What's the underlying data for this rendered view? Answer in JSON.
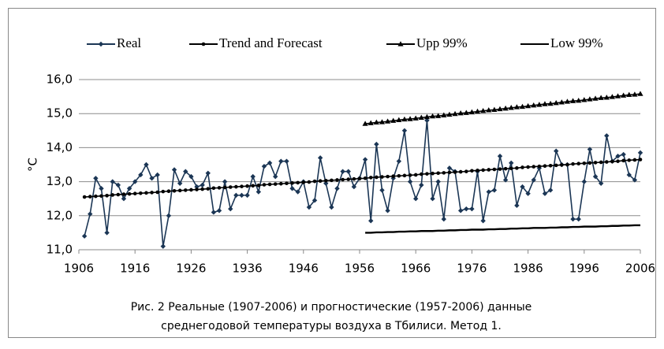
{
  "chart_data": {
    "type": "line",
    "y_label": "°C",
    "caption": [
      "Рис. 2  Реальные (1907-2006) и прогностические  (1957-2006) данные",
      "среднегодовой температуры воздуха в Тбилиси.  Метод 1."
    ],
    "x": [
      1907,
      1908,
      1909,
      1910,
      1911,
      1912,
      1913,
      1914,
      1915,
      1916,
      1917,
      1918,
      1919,
      1920,
      1921,
      1922,
      1923,
      1924,
      1925,
      1926,
      1927,
      1928,
      1929,
      1930,
      1931,
      1932,
      1933,
      1934,
      1935,
      1936,
      1937,
      1938,
      1939,
      1940,
      1941,
      1942,
      1943,
      1944,
      1945,
      1946,
      1947,
      1948,
      1949,
      1950,
      1951,
      1952,
      1953,
      1954,
      1955,
      1956,
      1957,
      1958,
      1959,
      1960,
      1961,
      1962,
      1963,
      1964,
      1965,
      1966,
      1967,
      1968,
      1969,
      1970,
      1971,
      1972,
      1973,
      1974,
      1975,
      1976,
      1977,
      1978,
      1979,
      1980,
      1981,
      1982,
      1983,
      1984,
      1985,
      1986,
      1987,
      1988,
      1989,
      1990,
      1991,
      1992,
      1993,
      1994,
      1995,
      1996,
      1997,
      1998,
      1999,
      2000,
      2001,
      2002,
      2003,
      2004,
      2005,
      2006
    ],
    "series": [
      {
        "name": "Real",
        "color": "#1b3655",
        "marker": "diamond",
        "values": [
          11.4,
          12.05,
          13.1,
          12.8,
          11.5,
          13.0,
          12.9,
          12.5,
          12.8,
          13.0,
          13.2,
          13.5,
          13.1,
          13.2,
          11.1,
          12.0,
          13.35,
          12.95,
          13.3,
          13.15,
          12.85,
          12.9,
          13.25,
          12.1,
          12.15,
          13.0,
          12.2,
          12.6,
          12.6,
          12.6,
          13.15,
          12.7,
          13.45,
          13.55,
          13.15,
          13.6,
          13.6,
          12.8,
          12.7,
          13.0,
          12.25,
          12.45,
          13.7,
          12.95,
          12.25,
          12.8,
          13.3,
          13.3,
          12.85,
          13.1,
          13.65,
          11.85,
          14.1,
          12.75,
          12.15,
          13.1,
          13.6,
          14.5,
          13.0,
          12.5,
          12.9,
          14.8,
          12.5,
          13.0,
          11.9,
          13.4,
          13.3,
          12.15,
          12.2,
          12.2,
          13.3,
          11.85,
          12.7,
          12.75,
          13.75,
          13.05,
          13.55,
          12.3,
          12.85,
          12.65,
          13.05,
          13.4,
          12.65,
          12.75,
          13.9,
          13.5,
          13.5,
          11.9,
          11.9,
          13.0,
          13.95,
          13.15,
          12.95,
          14.35,
          13.6,
          13.75,
          13.8,
          13.2,
          13.05,
          13.85
        ]
      },
      {
        "name": "Trend and Forecast",
        "color": "#000000",
        "marker": "dot",
        "values": [
          12.55,
          12.56,
          12.57,
          12.58,
          12.59,
          12.61,
          12.62,
          12.63,
          12.64,
          12.65,
          12.66,
          12.67,
          12.68,
          12.69,
          12.71,
          12.72,
          12.73,
          12.74,
          12.75,
          12.76,
          12.77,
          12.78,
          12.79,
          12.81,
          12.82,
          12.83,
          12.84,
          12.85,
          12.86,
          12.87,
          12.88,
          12.89,
          12.91,
          12.92,
          12.93,
          12.94,
          12.95,
          12.96,
          12.97,
          12.98,
          12.99,
          13.01,
          13.02,
          13.03,
          13.04,
          13.05,
          13.06,
          13.07,
          13.08,
          13.09,
          13.1,
          13.12,
          13.13,
          13.14,
          13.15,
          13.16,
          13.17,
          13.18,
          13.19,
          13.2,
          13.22,
          13.23,
          13.24,
          13.25,
          13.26,
          13.27,
          13.28,
          13.29,
          13.3,
          13.32,
          13.33,
          13.34,
          13.35,
          13.36,
          13.37,
          13.38,
          13.39,
          13.4,
          13.42,
          13.43,
          13.44,
          13.45,
          13.46,
          13.47,
          13.48,
          13.49,
          13.5,
          13.52,
          13.53,
          13.54,
          13.55,
          13.56,
          13.57,
          13.58,
          13.59,
          13.6,
          13.62,
          13.63,
          13.64,
          13.65
        ]
      },
      {
        "name": "Upp 99%",
        "color": "#000000",
        "marker": "triangle",
        "values": [
          null,
          null,
          null,
          null,
          null,
          null,
          null,
          null,
          null,
          null,
          null,
          null,
          null,
          null,
          null,
          null,
          null,
          null,
          null,
          null,
          null,
          null,
          null,
          null,
          null,
          null,
          null,
          null,
          null,
          null,
          null,
          null,
          null,
          null,
          null,
          null,
          null,
          null,
          null,
          null,
          null,
          null,
          null,
          null,
          null,
          null,
          null,
          null,
          null,
          null,
          14.7,
          14.72,
          14.74,
          14.75,
          14.77,
          14.79,
          14.81,
          14.83,
          14.84,
          14.86,
          14.88,
          14.9,
          14.92,
          14.93,
          14.95,
          14.97,
          14.99,
          15.01,
          15.02,
          15.04,
          15.06,
          15.08,
          15.1,
          15.11,
          15.13,
          15.15,
          15.17,
          15.19,
          15.2,
          15.22,
          15.24,
          15.26,
          15.28,
          15.29,
          15.31,
          15.33,
          15.35,
          15.37,
          15.38,
          15.4,
          15.42,
          15.44,
          15.46,
          15.47,
          15.49,
          15.51,
          15.53,
          15.55,
          15.56,
          15.58
        ]
      },
      {
        "name": "Low 99%",
        "color": "#000000",
        "marker": "none",
        "values": [
          null,
          null,
          null,
          null,
          null,
          null,
          null,
          null,
          null,
          null,
          null,
          null,
          null,
          null,
          null,
          null,
          null,
          null,
          null,
          null,
          null,
          null,
          null,
          null,
          null,
          null,
          null,
          null,
          null,
          null,
          null,
          null,
          null,
          null,
          null,
          null,
          null,
          null,
          null,
          null,
          null,
          null,
          null,
          null,
          null,
          null,
          null,
          null,
          null,
          null,
          11.5,
          11.5,
          11.51,
          11.51,
          11.52,
          11.52,
          11.53,
          11.53,
          11.54,
          11.54,
          11.55,
          11.55,
          11.55,
          11.56,
          11.56,
          11.57,
          11.57,
          11.58,
          11.58,
          11.59,
          11.59,
          11.59,
          11.6,
          11.6,
          11.61,
          11.61,
          11.62,
          11.62,
          11.63,
          11.63,
          11.64,
          11.64,
          11.64,
          11.65,
          11.65,
          11.66,
          11.66,
          11.67,
          11.67,
          11.68,
          11.68,
          11.68,
          11.69,
          11.69,
          11.7,
          11.7,
          11.71,
          11.71,
          11.72,
          11.72
        ]
      }
    ],
    "xlim": [
      1906,
      2006
    ],
    "xticks": [
      1906,
      1916,
      1926,
      1936,
      1946,
      1956,
      1966,
      1976,
      1986,
      1996,
      2006
    ],
    "ylim": [
      11,
      16
    ],
    "yticks": [
      {
        "value": 11,
        "label": "11,0"
      },
      {
        "value": 12,
        "label": "12,0"
      },
      {
        "value": 13,
        "label": "13,0"
      },
      {
        "value": 14,
        "label": "14,0"
      },
      {
        "value": 15,
        "label": "15,0"
      },
      {
        "value": 16,
        "label": "16,0"
      }
    ],
    "grid": true,
    "legend": "top"
  }
}
